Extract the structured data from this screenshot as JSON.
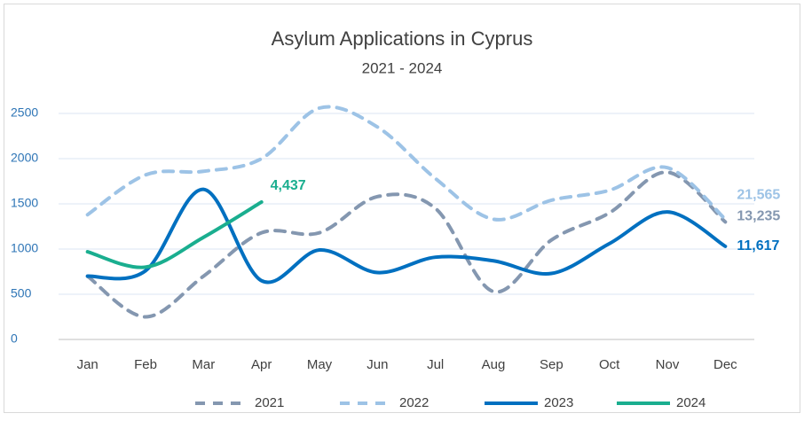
{
  "chart_data": {
    "type": "line",
    "title": "Asylum Applications in Cyprus",
    "subtitle": "2021 - 2024",
    "categories": [
      "Jan",
      "Feb",
      "Mar",
      "Apr",
      "May",
      "Jun",
      "Jul",
      "Aug",
      "Sep",
      "Oct",
      "Nov",
      "Dec"
    ],
    "series": [
      {
        "name": "2021",
        "color": "#8497b0",
        "dashed": true,
        "end_label": "13,235",
        "values": [
          700,
          250,
          700,
          1180,
          1180,
          1580,
          1450,
          530,
          1100,
          1400,
          1850,
          1300
        ]
      },
      {
        "name": "2022",
        "color": "#9dc3e6",
        "dashed": true,
        "end_label": "21,565",
        "values": [
          1380,
          1820,
          1860,
          2000,
          2560,
          2350,
          1780,
          1330,
          1540,
          1650,
          1900,
          1330
        ]
      },
      {
        "name": "2023",
        "color": "#0070c0",
        "dashed": false,
        "end_label": "11,617",
        "values": [
          700,
          760,
          1660,
          650,
          990,
          740,
          910,
          870,
          730,
          1060,
          1410,
          1030
        ]
      },
      {
        "name": "2024",
        "color": "#1aae8f",
        "dashed": false,
        "end_label": "4,437",
        "values": [
          970,
          800,
          1130,
          1520,
          null,
          null,
          null,
          null,
          null,
          null,
          null,
          null
        ]
      }
    ],
    "ylim": [
      0,
      2500
    ],
    "yticks": [
      0,
      500,
      1000,
      1500,
      2000,
      2500
    ],
    "grid": true,
    "smooth": true,
    "legend": "bottom"
  }
}
